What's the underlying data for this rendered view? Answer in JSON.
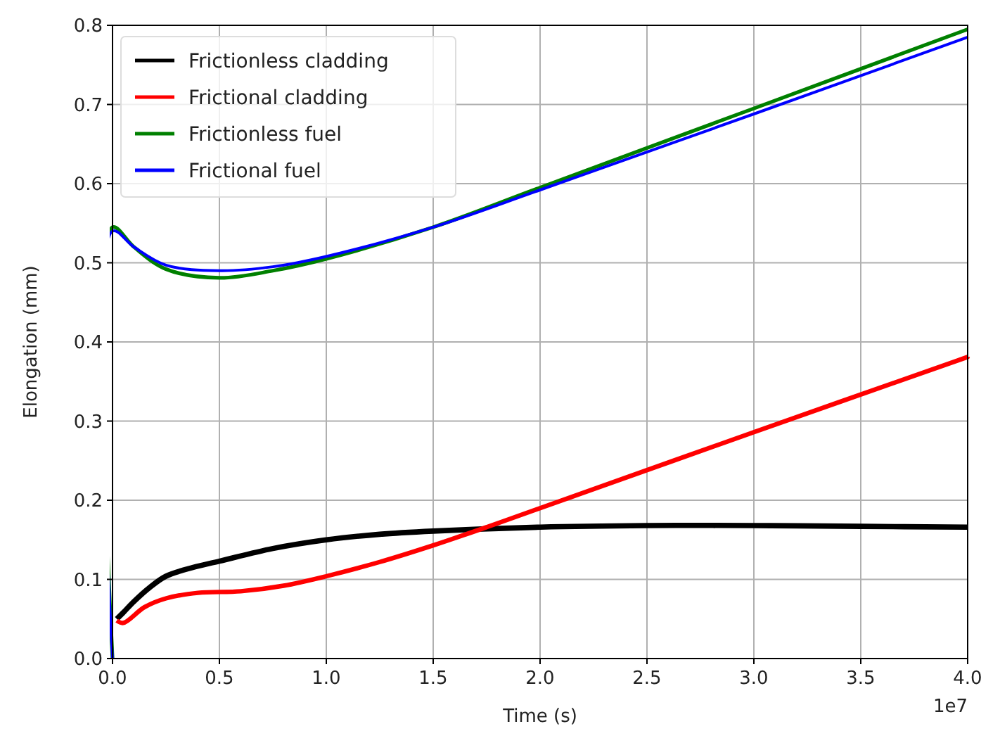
{
  "chart_data": {
    "type": "line",
    "xlabel": "Time (s)",
    "ylabel": "Elongation (mm)",
    "annotations": [
      "1e7"
    ],
    "xlim": [
      0,
      4
    ],
    "ylim": [
      0,
      0.8
    ],
    "xticks": [
      {
        "value": 0,
        "label": "0.0"
      },
      0.5,
      {
        "value": 1,
        "label": "1.0"
      },
      1.5,
      {
        "value": 2,
        "label": "2.0"
      },
      2.5,
      {
        "value": 3,
        "label": "3.0"
      },
      3.5,
      {
        "value": 4,
        "label": "4.0"
      }
    ],
    "yticks": [
      {
        "value": 0,
        "label": "0.0"
      },
      0.1,
      0.2,
      0.3,
      0.4,
      0.5,
      0.6,
      0.7,
      0.8
    ],
    "grid": true,
    "legend": "top left",
    "marker": "none",
    "line_style": "solid",
    "series": [
      {
        "name": "Frictionless cladding",
        "color": "#000000",
        "x": [
          0.02,
          0.05,
          0.1,
          0.175,
          0.25,
          0.375,
          0.5,
          0.75,
          1,
          1.25,
          1.5,
          2,
          2.5,
          3,
          3.5,
          4
        ],
        "values": [
          0.05,
          0.058,
          0.072,
          0.09,
          0.104,
          0.115,
          0.123,
          0.139,
          0.15,
          0.157,
          0.161,
          0.166,
          0.168,
          0.168,
          0.167,
          0.166
        ]
      },
      {
        "name": "Frictional cladding",
        "color": "#ff0000",
        "x": [
          0.02,
          0.05,
          0.15,
          0.25,
          0.4,
          0.6,
          0.8,
          1,
          1.25,
          1.5,
          1.75,
          2,
          3,
          4
        ],
        "values": [
          0.048,
          0.045,
          0.065,
          0.076,
          0.083,
          0.085,
          0.092,
          0.104,
          0.122,
          0.143,
          0.166,
          0.19,
          0.286,
          0.381
        ]
      },
      {
        "name": "Frictionless fuel",
        "color": "#008000",
        "x": [
          0,
          0,
          0.1,
          0.25,
          0.5,
          0.75,
          1,
          1.5,
          2,
          3,
          4
        ],
        "values": [
          0,
          0.545,
          0.52,
          0.492,
          0.481,
          0.49,
          0.505,
          0.545,
          0.595,
          0.695,
          0.795
        ]
      },
      {
        "name": "Frictional fuel",
        "color": "#0000ff",
        "x": [
          0,
          0,
          0.1,
          0.25,
          0.5,
          0.75,
          1,
          1.5,
          2,
          3,
          4
        ],
        "values": [
          0,
          0.54,
          0.52,
          0.497,
          0.49,
          0.495,
          0.508,
          0.545,
          0.592,
          0.688,
          0.785
        ]
      }
    ]
  }
}
